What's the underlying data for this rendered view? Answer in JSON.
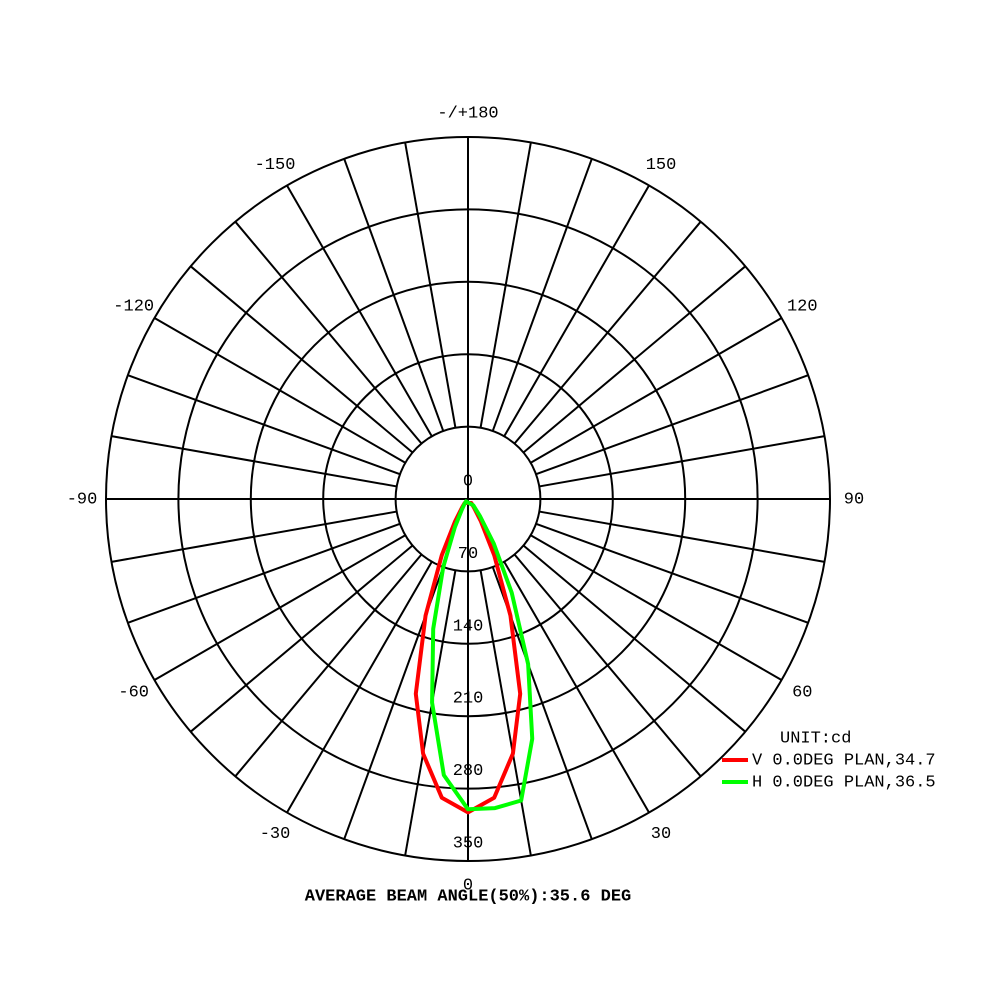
{
  "chart_data": {
    "type": "polar",
    "xlim": [
      -180,
      180
    ],
    "xticks": [
      0,
      30,
      60,
      90,
      120,
      150,
      {
        "value": 180,
        "label": "-/+180"
      },
      -150,
      -120,
      -90,
      -60,
      -30
    ],
    "ylim": [
      0,
      350
    ],
    "yticks": [
      0,
      70,
      140,
      210,
      280,
      350
    ],
    "unit_label": "UNIT:cd",
    "footer": "AVERAGE BEAM ANGLE(50%):35.6 DEG",
    "x": [
      -40,
      -35,
      -30,
      -25,
      -20,
      -15,
      -10,
      -5,
      0,
      5,
      10,
      15,
      20,
      25,
      30,
      35,
      40
    ],
    "series": [
      {
        "name": "V 0.0DEG PLAN,34.7",
        "color": "#ff0000",
        "values": [
          5,
          10,
          25,
          60,
          120,
          195,
          250,
          290,
          303,
          290,
          250,
          195,
          120,
          60,
          25,
          10,
          5
        ]
      },
      {
        "name": "H 0.0DEG PLAN,36.5",
        "color": "#00ff00",
        "values": [
          3,
          6,
          12,
          30,
          70,
          130,
          200,
          268,
          300,
          300,
          296,
          240,
          170,
          100,
          50,
          20,
          8
        ]
      }
    ]
  }
}
